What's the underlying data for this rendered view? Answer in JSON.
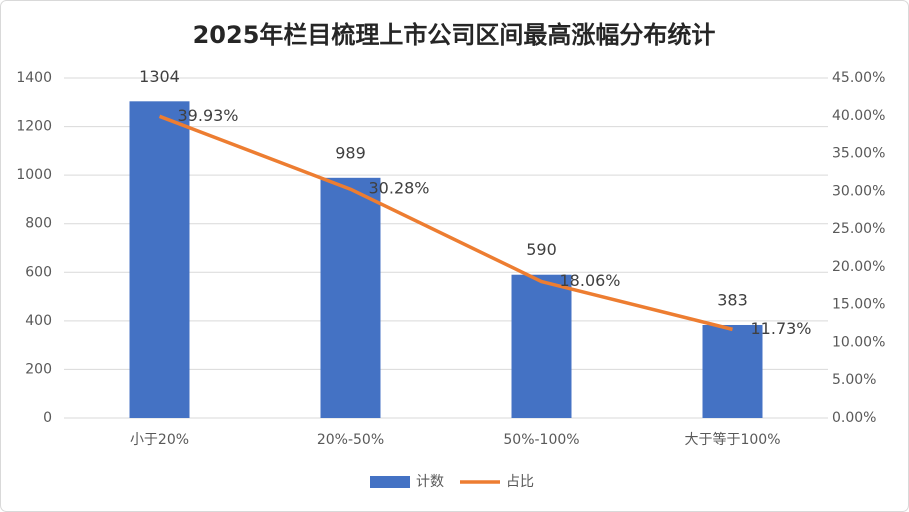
{
  "chart_data": {
    "type": "bar",
    "title": "2025年栏目梳理上市公司区间最高涨幅分布统计",
    "categories": [
      "小于20%",
      "20%-50%",
      "50%-100%",
      "大于等于100%"
    ],
    "series": [
      {
        "name": "计数",
        "type": "bar",
        "color": "#4472c4",
        "values": [
          1304,
          989,
          590,
          383
        ]
      },
      {
        "name": "占比",
        "type": "line",
        "axis": "y2",
        "color": "#ed7d31",
        "values": [
          39.93,
          30.28,
          18.06,
          11.73
        ],
        "value_labels": [
          "39.93%",
          "30.28%",
          "18.06%",
          "11.73%"
        ]
      }
    ],
    "ylim": [
      0,
      1400
    ],
    "yticks": [
      0,
      200,
      400,
      600,
      800,
      1000,
      1200,
      1400
    ],
    "y2lim": [
      0,
      45
    ],
    "y2ticks": [
      {
        "value": 0,
        "label": "0.00%"
      },
      {
        "value": 5,
        "label": "5.00%"
      },
      {
        "value": 10,
        "label": "10.00%"
      },
      {
        "value": 15,
        "label": "15.00%"
      },
      {
        "value": 20,
        "label": "20.00%"
      },
      {
        "value": 25,
        "label": "25.00%"
      },
      {
        "value": 30,
        "label": "30.00%"
      },
      {
        "value": 35,
        "label": "35.00%"
      },
      {
        "value": 40,
        "label": "40.00%"
      },
      {
        "value": 45,
        "label": "45.00%"
      }
    ],
    "grid": true,
    "legend": "bottom"
  }
}
